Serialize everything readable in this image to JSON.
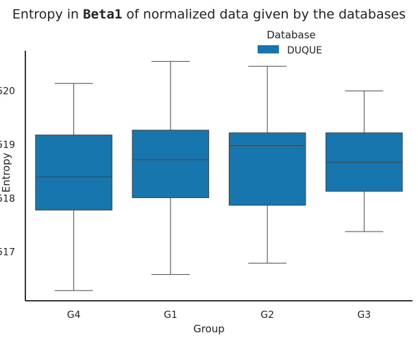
{
  "chart_data": {
    "type": "box",
    "title_parts": {
      "prefix": "Entropy in ",
      "code": "Beta1",
      "suffix": " of normalized data given by the databases"
    },
    "xlabel": "Group",
    "ylabel": "Entropy",
    "categories": [
      "G4",
      "G1",
      "G2",
      "G3"
    ],
    "y_ticks": [
      0.517,
      0.518,
      0.519,
      0.52
    ],
    "y_tick_labels": [
      "517",
      "518",
      "519",
      "520"
    ],
    "ylim": [
      0.51609,
      0.52075
    ],
    "legend": {
      "title": "Database",
      "position": "top-center"
    },
    "series": [
      {
        "name": "DUQUE",
        "color": "#1776AD",
        "boxes": [
          {
            "category": "G4",
            "whisker_low": 0.51628,
            "q1": 0.51778,
            "median": 0.5184,
            "q3": 0.51918,
            "whisker_high": 0.52014
          },
          {
            "category": "G1",
            "whisker_low": 0.51658,
            "q1": 0.51801,
            "median": 0.51872,
            "q3": 0.51927,
            "whisker_high": 0.52055
          },
          {
            "category": "G2",
            "whisker_low": 0.51679,
            "q1": 0.51787,
            "median": 0.51898,
            "q3": 0.51922,
            "whisker_high": 0.52046
          },
          {
            "category": "G3",
            "whisker_low": 0.51738,
            "q1": 0.51813,
            "median": 0.51867,
            "q3": 0.51922,
            "whisker_high": 0.52
          }
        ]
      }
    ]
  }
}
